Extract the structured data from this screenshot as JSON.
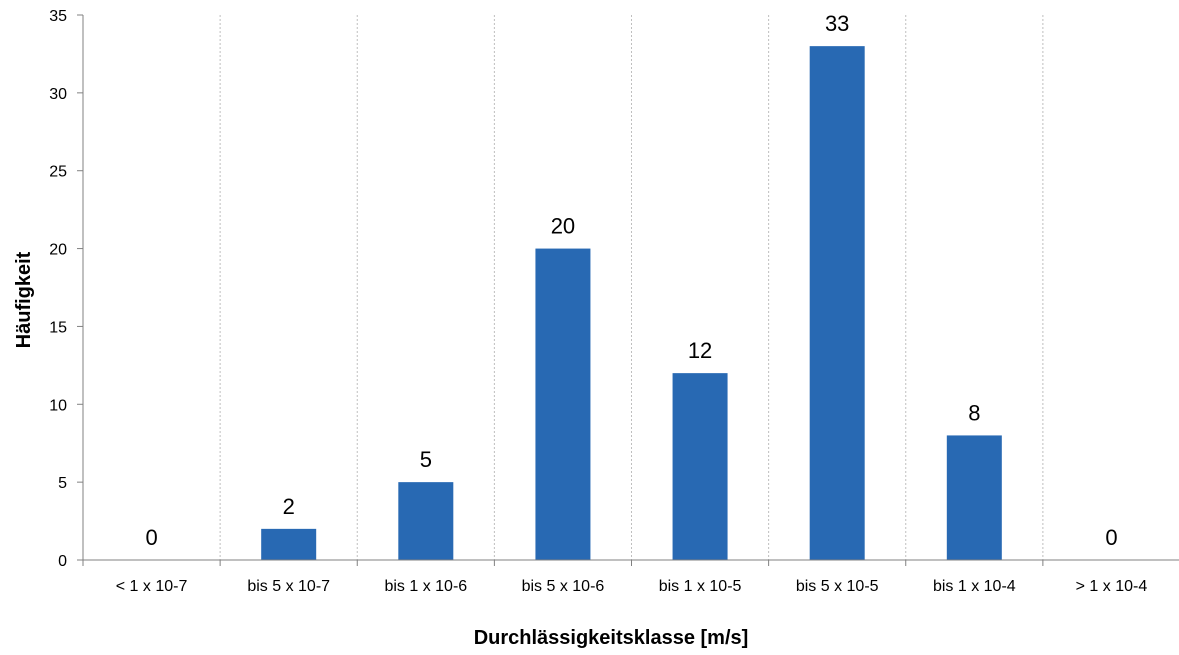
{
  "chart_data": {
    "type": "bar",
    "title": "",
    "xlabel": "Durchlässigkeitsklasse [m/s]",
    "ylabel": "Häufigkeit",
    "categories": [
      "< 1 x 10-7",
      "bis 5 x 10-7",
      "bis 1 x 10-6",
      "bis 5 x 10-6",
      "bis 1 x 10-5",
      "bis 5 x 10-5",
      "bis 1 x 10-4",
      "> 1 x 10-4"
    ],
    "values": [
      0,
      2,
      5,
      20,
      12,
      33,
      8,
      0
    ],
    "ylim": [
      0,
      35
    ],
    "yticks": [
      0,
      5,
      10,
      15,
      20,
      25,
      30,
      35
    ],
    "grid": "vertical dotted separators between categories",
    "legend": "none",
    "bar_color": "#2869b3",
    "axis_color": "#808080",
    "grid_color": "#bfbfbf"
  }
}
